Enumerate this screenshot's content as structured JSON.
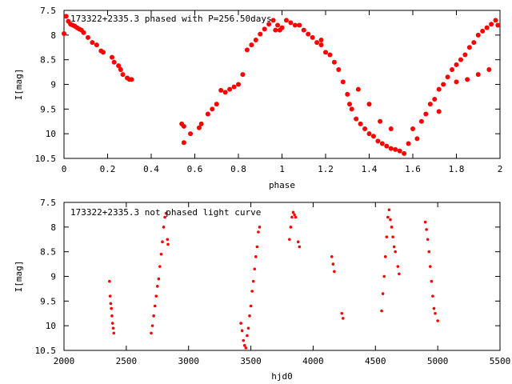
{
  "chart_data": [
    {
      "type": "scatter",
      "title": "173322+2335.3 phased with P=256.50days",
      "xlabel": "phase",
      "ylabel": "I[mag]",
      "xlim": [
        0,
        2
      ],
      "ylim": [
        7.5,
        10.5
      ],
      "y_inverted": true,
      "grid": false,
      "color": "#ff0000",
      "xticks": [
        "0",
        "0.2",
        "0.4",
        "0.6",
        "0.8",
        "1",
        "1.2",
        "1.4",
        "1.6",
        "1.8",
        "2"
      ],
      "yticks": [
        "7.5",
        "8",
        "8.5",
        "9",
        "9.5",
        "10",
        "10.5"
      ],
      "points": [
        [
          0.0,
          7.97
        ],
        [
          0.01,
          7.62
        ],
        [
          0.02,
          7.72
        ],
        [
          0.03,
          7.78
        ],
        [
          0.04,
          7.8
        ],
        [
          0.05,
          7.82
        ],
        [
          0.06,
          7.85
        ],
        [
          0.07,
          7.88
        ],
        [
          0.08,
          7.9
        ],
        [
          0.09,
          7.95
        ],
        [
          0.11,
          8.05
        ],
        [
          0.13,
          8.15
        ],
        [
          0.15,
          8.2
        ],
        [
          0.17,
          8.32
        ],
        [
          0.18,
          8.35
        ],
        [
          0.22,
          8.45
        ],
        [
          0.23,
          8.55
        ],
        [
          0.25,
          8.62
        ],
        [
          0.26,
          8.7
        ],
        [
          0.27,
          8.8
        ],
        [
          0.29,
          8.87
        ],
        [
          0.3,
          8.9
        ],
        [
          0.31,
          8.9
        ],
        [
          0.54,
          9.8
        ],
        [
          0.55,
          9.85
        ],
        [
          0.55,
          10.18
        ],
        [
          0.58,
          10.0
        ],
        [
          0.62,
          9.88
        ],
        [
          0.63,
          9.8
        ],
        [
          0.66,
          9.6
        ],
        [
          0.68,
          9.5
        ],
        [
          0.7,
          9.4
        ],
        [
          0.72,
          9.12
        ],
        [
          0.74,
          9.16
        ],
        [
          0.76,
          9.1
        ],
        [
          0.78,
          9.05
        ],
        [
          0.8,
          9.0
        ],
        [
          0.82,
          8.8
        ],
        [
          0.84,
          8.3
        ],
        [
          0.86,
          8.2
        ],
        [
          0.88,
          8.1
        ],
        [
          0.9,
          7.98
        ],
        [
          0.92,
          7.88
        ],
        [
          0.94,
          7.78
        ],
        [
          0.96,
          7.7
        ],
        [
          0.98,
          7.8
        ],
        [
          0.99,
          7.9
        ],
        [
          1.0,
          7.85
        ],
        [
          1.02,
          7.7
        ],
        [
          1.04,
          7.75
        ],
        [
          1.06,
          7.8
        ],
        [
          1.08,
          7.8
        ],
        [
          1.1,
          7.9
        ],
        [
          1.12,
          7.98
        ],
        [
          1.14,
          8.05
        ],
        [
          1.16,
          8.15
        ],
        [
          1.18,
          8.2
        ],
        [
          1.2,
          8.35
        ],
        [
          1.22,
          8.4
        ],
        [
          1.24,
          8.55
        ],
        [
          1.26,
          8.7
        ],
        [
          1.28,
          8.95
        ],
        [
          1.3,
          9.2
        ],
        [
          1.31,
          9.4
        ],
        [
          1.32,
          9.5
        ],
        [
          1.34,
          9.7
        ],
        [
          1.36,
          9.8
        ],
        [
          1.38,
          9.9
        ],
        [
          1.4,
          10.0
        ],
        [
          1.42,
          10.05
        ],
        [
          1.44,
          10.15
        ],
        [
          1.46,
          10.2
        ],
        [
          1.48,
          10.25
        ],
        [
          1.5,
          10.3
        ],
        [
          1.52,
          10.32
        ],
        [
          1.54,
          10.35
        ],
        [
          1.56,
          10.4
        ],
        [
          1.58,
          10.2
        ],
        [
          1.6,
          9.9
        ],
        [
          1.62,
          10.1
        ],
        [
          1.64,
          9.75
        ],
        [
          1.66,
          9.6
        ],
        [
          1.68,
          9.4
        ],
        [
          1.7,
          9.3
        ],
        [
          1.72,
          9.1
        ],
        [
          1.74,
          9.0
        ],
        [
          1.76,
          8.85
        ],
        [
          1.78,
          8.7
        ],
        [
          1.8,
          8.6
        ],
        [
          1.82,
          8.5
        ],
        [
          1.84,
          8.4
        ],
        [
          1.86,
          8.25
        ],
        [
          1.88,
          8.15
        ],
        [
          1.9,
          8.0
        ],
        [
          1.92,
          7.92
        ],
        [
          1.94,
          7.85
        ],
        [
          1.96,
          7.78
        ],
        [
          1.98,
          7.7
        ],
        [
          1.99,
          7.8
        ],
        [
          1.35,
          9.1
        ],
        [
          1.4,
          9.4
        ],
        [
          1.45,
          9.75
        ],
        [
          1.5,
          9.9
        ],
        [
          1.72,
          9.55
        ],
        [
          1.8,
          8.95
        ],
        [
          1.85,
          8.9
        ],
        [
          1.9,
          8.8
        ],
        [
          1.95,
          8.7
        ],
        [
          1.18,
          8.1
        ],
        [
          0.97,
          7.9
        ]
      ]
    },
    {
      "type": "scatter",
      "title": "173322+2335.3 not phased light curve",
      "xlabel": "hjd0",
      "ylabel": "I[mag]",
      "xlim": [
        2000,
        5500
      ],
      "ylim": [
        7.5,
        10.5
      ],
      "y_inverted": true,
      "grid": false,
      "color": "#ff0000",
      "xticks": [
        "2000",
        "2500",
        "3000",
        "3500",
        "4000",
        "4500",
        "5000",
        "5500"
      ],
      "yticks": [
        "7.5",
        "8",
        "8.5",
        "9",
        "9.5",
        "10",
        "10.5"
      ],
      "points": [
        [
          2365,
          9.1
        ],
        [
          2370,
          9.4
        ],
        [
          2375,
          9.55
        ],
        [
          2380,
          9.65
        ],
        [
          2385,
          9.8
        ],
        [
          2390,
          9.95
        ],
        [
          2395,
          10.05
        ],
        [
          2400,
          10.15
        ],
        [
          2700,
          10.15
        ],
        [
          2710,
          10.0
        ],
        [
          2720,
          9.8
        ],
        [
          2730,
          9.6
        ],
        [
          2740,
          9.4
        ],
        [
          2750,
          9.2
        ],
        [
          2760,
          9.05
        ],
        [
          2770,
          8.8
        ],
        [
          2780,
          8.55
        ],
        [
          2790,
          8.3
        ],
        [
          2800,
          8.0
        ],
        [
          2810,
          7.8
        ],
        [
          2820,
          7.72
        ],
        [
          2830,
          8.25
        ],
        [
          2835,
          8.35
        ],
        [
          3420,
          9.95
        ],
        [
          3430,
          10.1
        ],
        [
          3440,
          10.3
        ],
        [
          3450,
          10.4
        ],
        [
          3460,
          10.45
        ],
        [
          3470,
          10.2
        ],
        [
          3480,
          10.05
        ],
        [
          3490,
          9.8
        ],
        [
          3500,
          9.6
        ],
        [
          3510,
          9.3
        ],
        [
          3520,
          9.1
        ],
        [
          3530,
          8.85
        ],
        [
          3540,
          8.6
        ],
        [
          3550,
          8.4
        ],
        [
          3560,
          8.1
        ],
        [
          3570,
          8.0
        ],
        [
          3810,
          8.25
        ],
        [
          3820,
          8.0
        ],
        [
          3830,
          7.8
        ],
        [
          3840,
          7.7
        ],
        [
          3850,
          7.75
        ],
        [
          3860,
          7.8
        ],
        [
          3880,
          8.3
        ],
        [
          3890,
          8.4
        ],
        [
          4150,
          8.6
        ],
        [
          4160,
          8.75
        ],
        [
          4170,
          8.9
        ],
        [
          4230,
          9.75
        ],
        [
          4240,
          9.85
        ],
        [
          4550,
          9.7
        ],
        [
          4560,
          9.35
        ],
        [
          4570,
          9.0
        ],
        [
          4580,
          8.6
        ],
        [
          4590,
          8.2
        ],
        [
          4600,
          7.8
        ],
        [
          4610,
          7.65
        ],
        [
          4620,
          7.85
        ],
        [
          4630,
          8.0
        ],
        [
          4640,
          8.2
        ],
        [
          4650,
          8.4
        ],
        [
          4660,
          8.5
        ],
        [
          4680,
          8.8
        ],
        [
          4690,
          8.95
        ],
        [
          4900,
          7.9
        ],
        [
          4910,
          8.05
        ],
        [
          4920,
          8.25
        ],
        [
          4930,
          8.5
        ],
        [
          4940,
          8.8
        ],
        [
          4950,
          9.1
        ],
        [
          4960,
          9.4
        ],
        [
          4970,
          9.65
        ],
        [
          4980,
          9.75
        ],
        [
          5000,
          9.9
        ]
      ]
    }
  ]
}
